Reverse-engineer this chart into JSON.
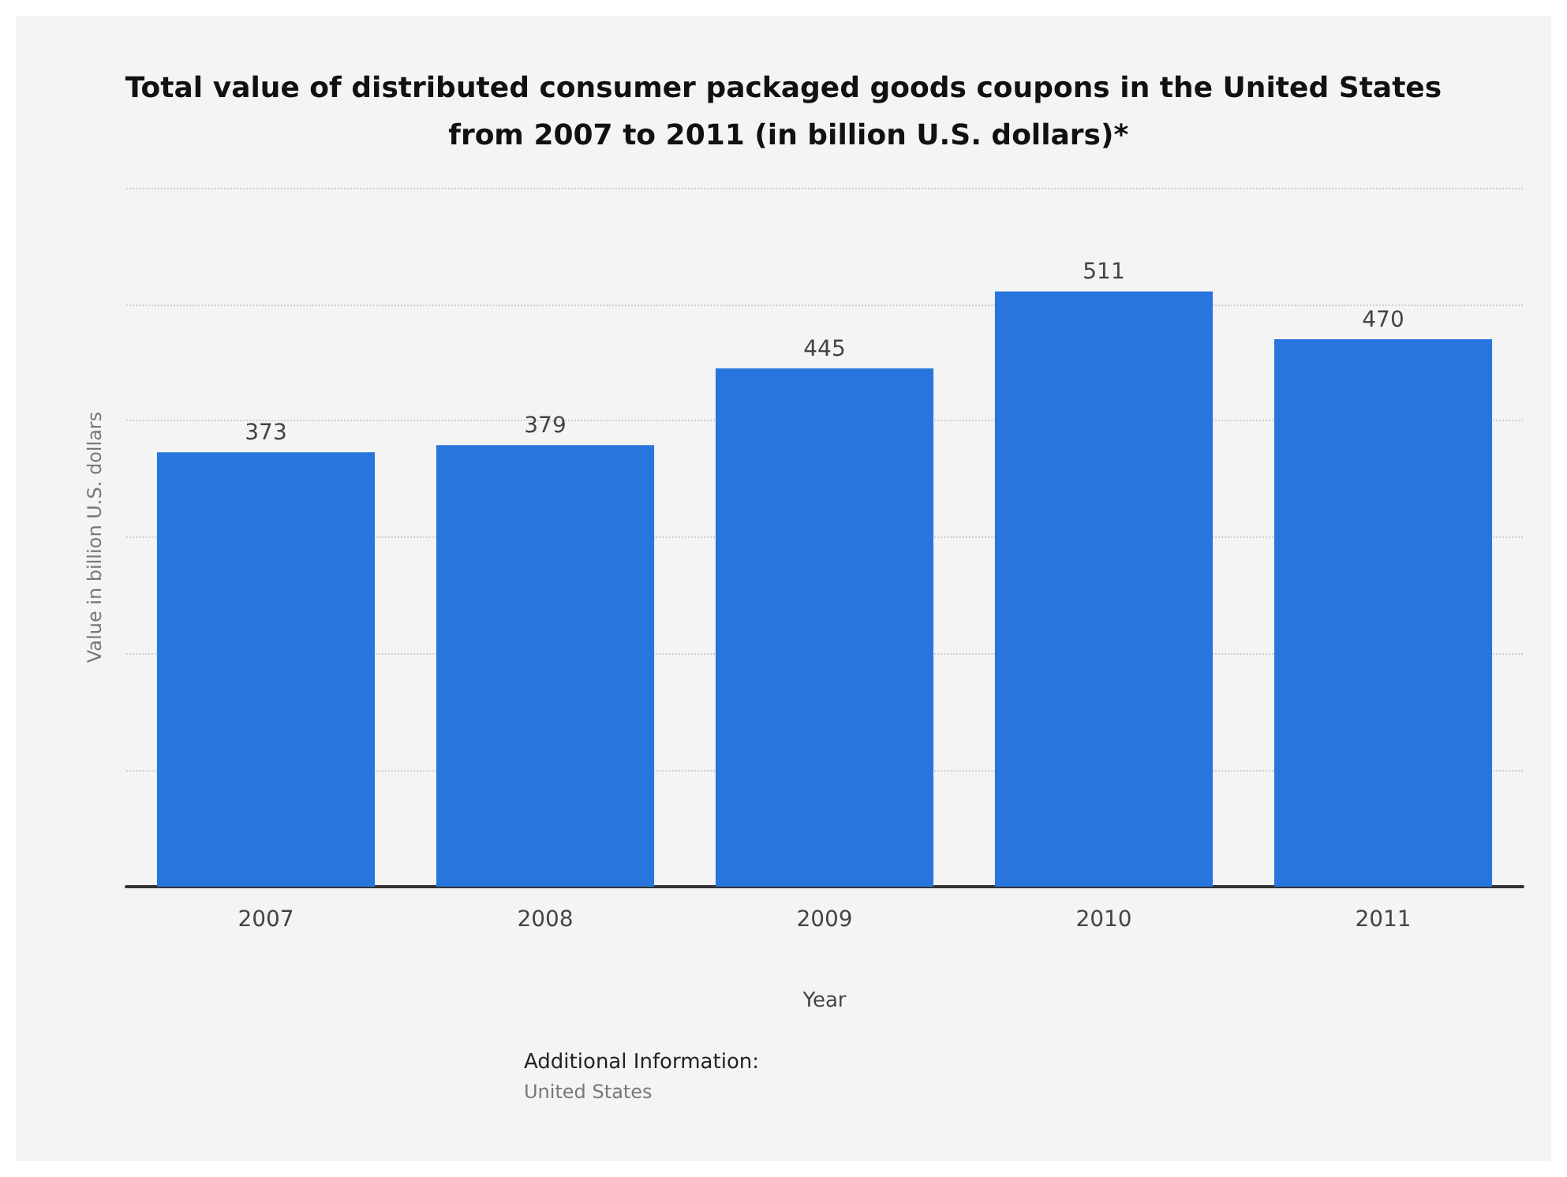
{
  "chart_data": {
    "type": "bar",
    "title": "Total value of distributed consumer packaged goods coupons in the United States from 2007 to 2011 (in billion U.S. dollars)*",
    "xlabel": "Year",
    "ylabel": "Value in billion U.S. dollars",
    "categories": [
      "2007",
      "2008",
      "2009",
      "2010",
      "2011"
    ],
    "values": [
      373,
      379,
      445,
      511,
      470
    ],
    "color": "#2876dd",
    "ylim": [
      0,
      600
    ],
    "yticks": [
      {
        "value": 0,
        "label": null
      },
      {
        "value": 100,
        "label": null
      },
      {
        "value": 200,
        "label": null
      },
      {
        "value": 300,
        "label": null
      },
      {
        "value": 400,
        "label": null
      },
      {
        "value": 500,
        "label": null
      },
      {
        "value": 600,
        "label": null
      }
    ],
    "tick_labels": "x",
    "grid": "y",
    "data_labels": true,
    "annotations": [
      "Additional Information:",
      "United States"
    ]
  }
}
